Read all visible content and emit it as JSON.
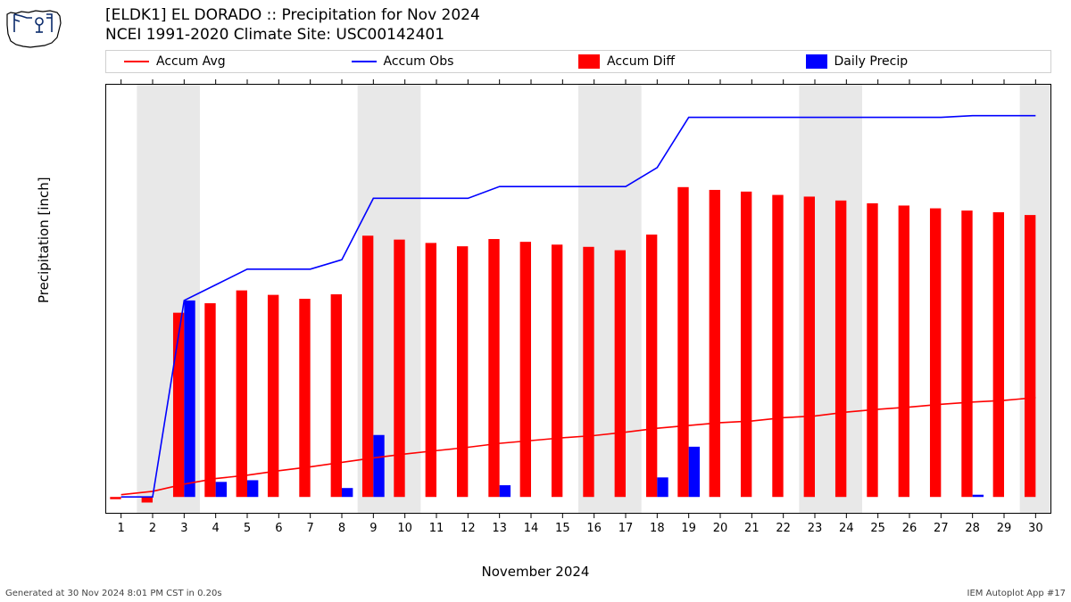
{
  "title_line1": "[ELDK1] EL DORADO  :: Precipitation for Nov 2024",
  "title_line2": "NCEI 1991-2020 Climate Site: USC00142401",
  "footer_left": "Generated at 30 Nov 2024 8:01 PM CST in 0.20s",
  "footer_right": "IEM Autoplot App #17",
  "ylabel": "Precipitation [inch]",
  "xlabel": "November 2024",
  "legend": [
    {
      "label": "Accum Avg",
      "type": "line",
      "color": "#ff0000"
    },
    {
      "label": "Accum Obs",
      "type": "line",
      "color": "#0000ff"
    },
    {
      "label": "Accum Diff",
      "type": "block",
      "color": "#ff0000"
    },
    {
      "label": "Daily Precip",
      "type": "block",
      "color": "#0000ff"
    }
  ],
  "chart": {
    "type": "bar+line",
    "days": [
      1,
      2,
      3,
      4,
      5,
      6,
      7,
      8,
      9,
      10,
      11,
      12,
      13,
      14,
      15,
      16,
      17,
      18,
      19,
      20,
      21,
      22,
      23,
      24,
      25,
      26,
      27,
      28,
      29,
      30
    ],
    "xlim": [
      0.5,
      30.5
    ],
    "ylim": [
      -0.3,
      7.4
    ],
    "yticks": [
      0,
      1,
      2,
      3,
      4,
      5,
      6,
      7
    ],
    "background_color": "#ffffff",
    "weekend_band_color": "#e8e8e8",
    "weekend_days": [
      2,
      3,
      9,
      10,
      16,
      17,
      23,
      24,
      30
    ],
    "axis_color": "#000000",
    "tick_length": 5,
    "bar_width": 0.35,
    "line_width": 1.6,
    "series": {
      "accum_diff": {
        "color": "#ff0000",
        "values": [
          -0.04,
          -0.1,
          3.3,
          3.47,
          3.7,
          3.62,
          3.55,
          3.63,
          4.68,
          4.61,
          4.55,
          4.49,
          4.62,
          4.57,
          4.52,
          4.48,
          4.42,
          4.7,
          5.55,
          5.5,
          5.47,
          5.41,
          5.38,
          5.31,
          5.26,
          5.22,
          5.17,
          5.13,
          5.1,
          5.05
        ]
      },
      "daily_precip": {
        "color": "#0000ff",
        "values": [
          0.0,
          0.0,
          3.52,
          0.27,
          0.3,
          0.0,
          0.0,
          0.16,
          1.11,
          0.0,
          0.0,
          0.0,
          0.21,
          0.0,
          0.0,
          0.0,
          0.0,
          0.35,
          0.9,
          0.0,
          0.0,
          0.0,
          0.0,
          0.0,
          0.0,
          0.0,
          0.0,
          0.04,
          0.0,
          0.0
        ]
      },
      "accum_avg": {
        "color": "#ff0000",
        "values": [
          0.04,
          0.1,
          0.23,
          0.33,
          0.39,
          0.47,
          0.54,
          0.62,
          0.7,
          0.77,
          0.83,
          0.89,
          0.96,
          1.01,
          1.06,
          1.1,
          1.16,
          1.23,
          1.28,
          1.33,
          1.36,
          1.42,
          1.45,
          1.52,
          1.57,
          1.61,
          1.66,
          1.7,
          1.73,
          1.78
        ]
      },
      "accum_obs": {
        "color": "#0000ff",
        "values": [
          0.0,
          0.0,
          3.52,
          3.8,
          4.08,
          4.08,
          4.08,
          4.25,
          5.35,
          5.35,
          5.35,
          5.35,
          5.56,
          5.56,
          5.56,
          5.56,
          5.56,
          5.9,
          6.8,
          6.8,
          6.8,
          6.8,
          6.8,
          6.8,
          6.8,
          6.8,
          6.8,
          6.83,
          6.83,
          6.83
        ]
      }
    }
  },
  "logo": {
    "state_fill": "#ffffff",
    "state_stroke": "#000000",
    "tools_color": "#0a2a6b"
  }
}
